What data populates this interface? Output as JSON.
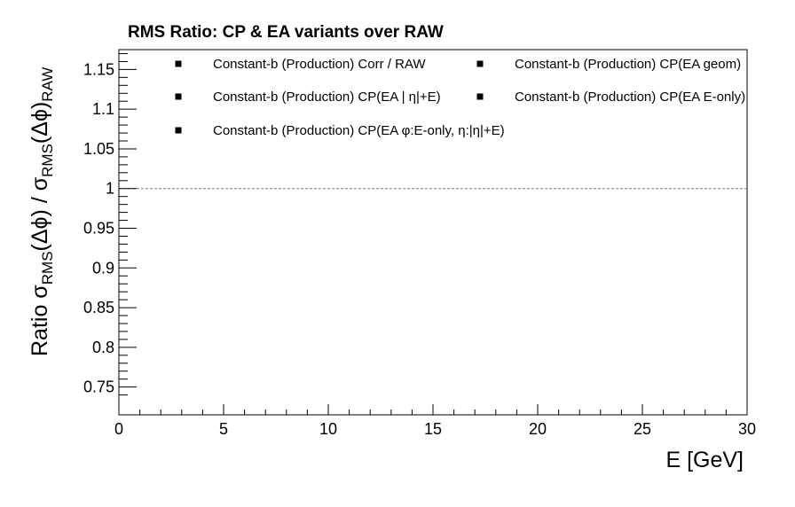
{
  "chart_data": {
    "type": "scatter",
    "title": "RMS Ratio: CP & EA variants over RAW",
    "xlabel": "E  [GeV]",
    "ylabel_parts": [
      "Ratio  σ",
      "RMS",
      "(Δϕ) / σ",
      "RMS",
      "(Δϕ)",
      "RAW"
    ],
    "xlim": [
      0,
      30
    ],
    "ylim": [
      0.715,
      1.175
    ],
    "x_ticks": [
      0,
      5,
      10,
      15,
      20,
      25,
      30
    ],
    "y_ticks": [
      0.75,
      0.8,
      0.85,
      0.9,
      0.95,
      1,
      1.05,
      1.1,
      1.15
    ],
    "x_tick_labels": [
      "0",
      "5",
      "10",
      "15",
      "20",
      "25",
      "30"
    ],
    "y_tick_labels": [
      "0.75",
      "0.8",
      "0.85",
      "0.9",
      "0.95",
      "1",
      "1.05",
      "1.1",
      "1.15"
    ],
    "reference_line": 1.0,
    "grid": false,
    "legend_position": "top",
    "series": [
      {
        "name": "Constant-b (Production) Corr / RAW",
        "values": []
      },
      {
        "name": "Constant-b (Production) CP(EA geom)",
        "values": []
      },
      {
        "name": "Constant-b (Production) CP(EA |  η|+E)",
        "values": []
      },
      {
        "name": "Constant-b (Production) CP(EA E-only)",
        "values": []
      },
      {
        "name": "Constant-b (Production) CP(EA    φ:E-only,  η:|η|+E)",
        "values": []
      }
    ],
    "colors": {
      "marker": "#000000",
      "axis": "#000000",
      "reference_line": "#7f7f7f"
    }
  }
}
